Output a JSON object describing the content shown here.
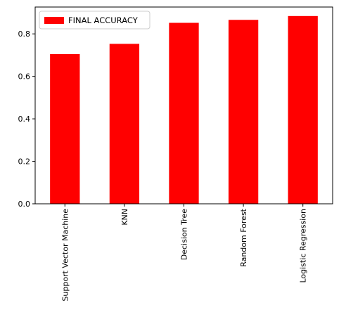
{
  "chart_data": {
    "type": "bar",
    "categories": [
      "Support Vector Machine",
      "KNN",
      "Decision Tree",
      "Random Forest",
      "Logistic Regression"
    ],
    "series": [
      {
        "name": "FINAL ACCURACY",
        "values": [
          0.705,
          0.753,
          0.852,
          0.866,
          0.884
        ],
        "color": "#ff0000"
      }
    ],
    "ylim": [
      0,
      0.9264
    ],
    "yticks": [
      0.0,
      0.2,
      0.4,
      0.6,
      0.8
    ],
    "ytick_labels": [
      "0.0",
      "0.2",
      "0.4",
      "0.6",
      "0.8"
    ],
    "xtick_rotation": "vertical",
    "legend_position": "top-left",
    "grid": false
  }
}
